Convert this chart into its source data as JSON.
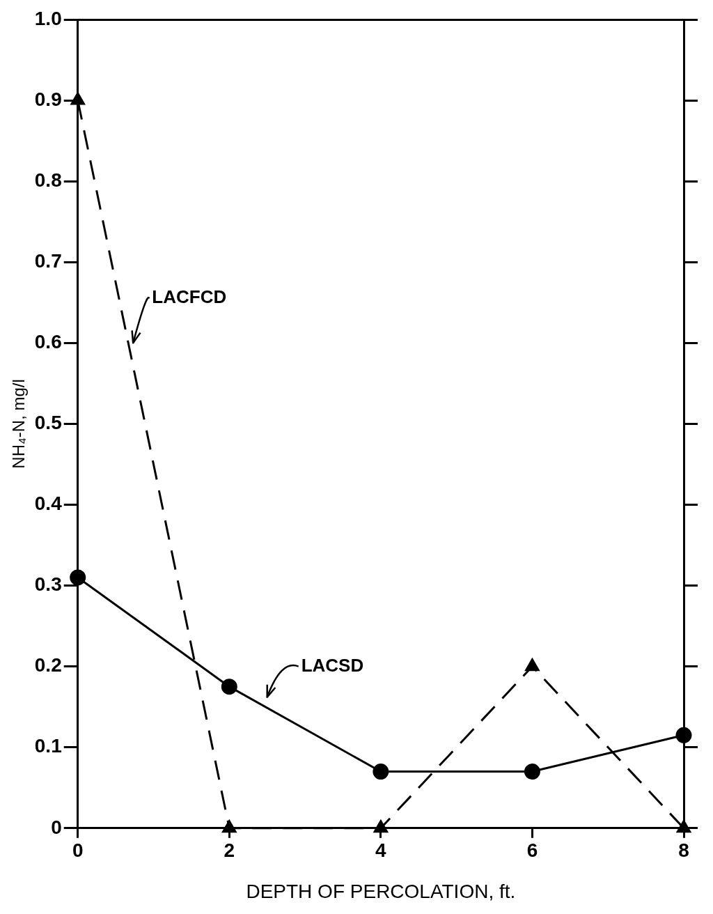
{
  "chart_data": {
    "type": "line",
    "xlabel": "DEPTH OF PERCOLATION, ft.",
    "ylabel": "NH₄-N, mg/l",
    "x": [
      0,
      2,
      4,
      6,
      8
    ],
    "series": [
      {
        "name": "LACFCD",
        "color": "#000000",
        "values": [
          0.9,
          0,
          0,
          0.2,
          0
        ],
        "marker": "triangle",
        "line_style": "dashed"
      },
      {
        "name": "LACSD",
        "color": "#000000",
        "values": [
          0.31,
          0.175,
          0.07,
          0.07,
          0.115
        ],
        "marker": "circle",
        "line_style": "solid"
      }
    ],
    "xlim": [
      0,
      8
    ],
    "xticks": [
      0,
      2,
      4,
      6,
      8
    ],
    "ylim": [
      0,
      1
    ],
    "yticks": [
      0,
      0.1,
      0.2,
      0.3,
      0.4,
      0.5,
      0.6,
      0.7,
      0.8,
      0.9,
      {
        "value": 1,
        "label": "1.0"
      }
    ],
    "grid": false,
    "legend": false
  }
}
